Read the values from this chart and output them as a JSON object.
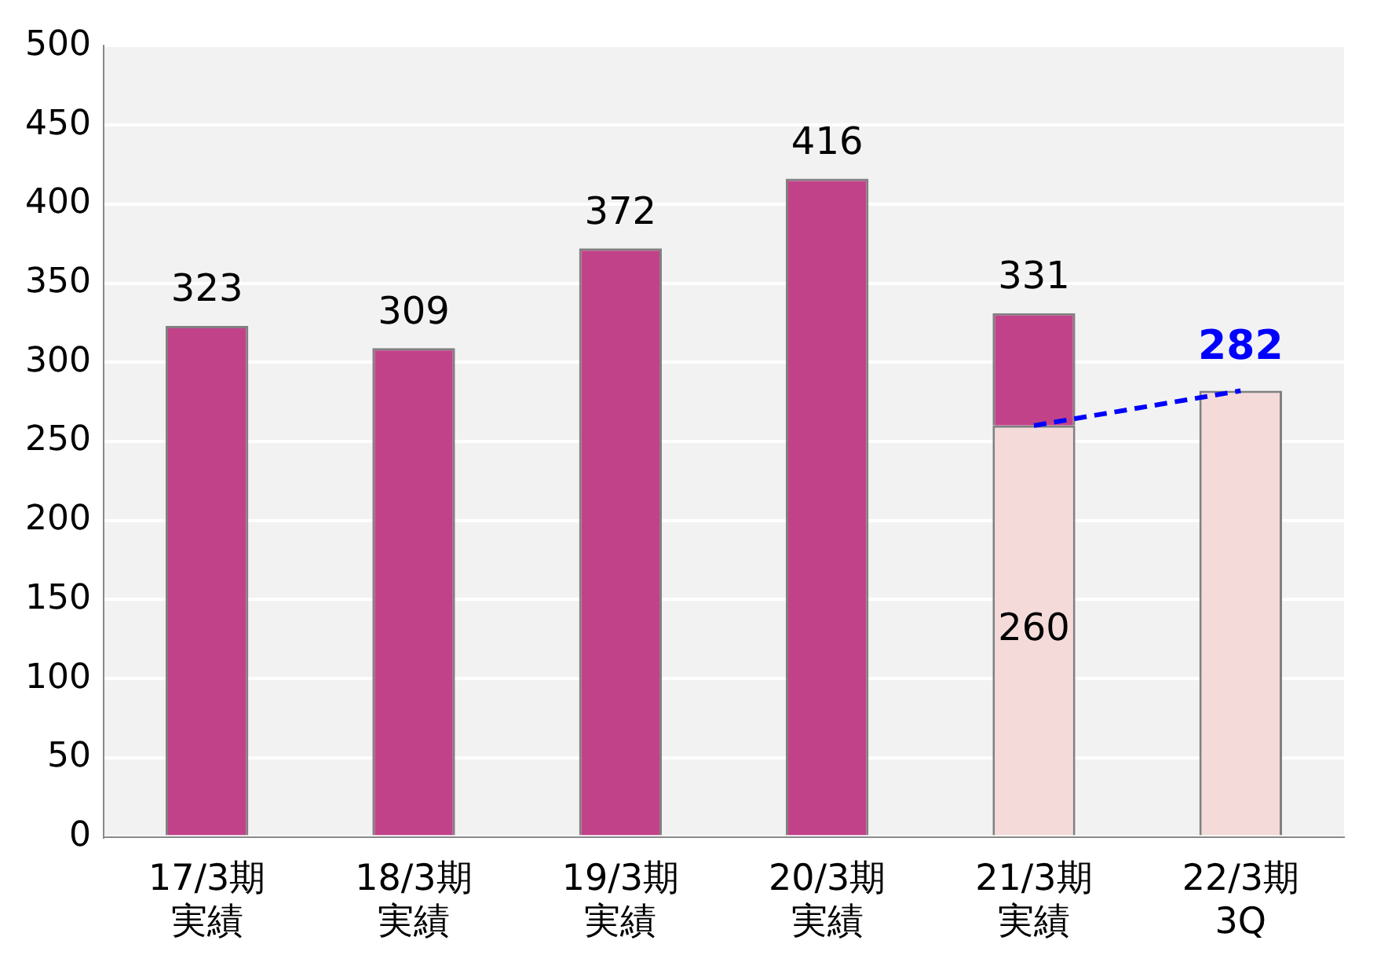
{
  "chart_data": {
    "type": "bar",
    "stacked": true,
    "categories": [
      "17/3期実績",
      "18/3期実績",
      "19/3期実績",
      "20/3期実績",
      "21/3期実績",
      "22/3期3Q"
    ],
    "ylim": [
      0,
      500
    ],
    "yticks": [
      0,
      50,
      100,
      150,
      200,
      250,
      300,
      350,
      400,
      450,
      500
    ],
    "grid": "y",
    "legend": false,
    "series": [
      {
        "color": "#f5dada",
        "values": [
          null,
          null,
          null,
          null,
          260,
          282
        ],
        "value_labels": [
          null,
          null,
          null,
          null,
          "260",
          null
        ]
      },
      {
        "color": "#c2428a",
        "values": [
          323,
          309,
          372,
          416,
          71,
          null
        ]
      },
      {
        "type": "line",
        "color": "#0000ff",
        "line_style": "dashed",
        "marker": "none",
        "values": [
          null,
          null,
          null,
          null,
          260,
          282
        ],
        "value_labels": [
          null,
          null,
          null,
          null,
          null,
          "282"
        ]
      }
    ],
    "totals": [
      "323",
      "309",
      "372",
      "416",
      "331",
      null
    ]
  }
}
